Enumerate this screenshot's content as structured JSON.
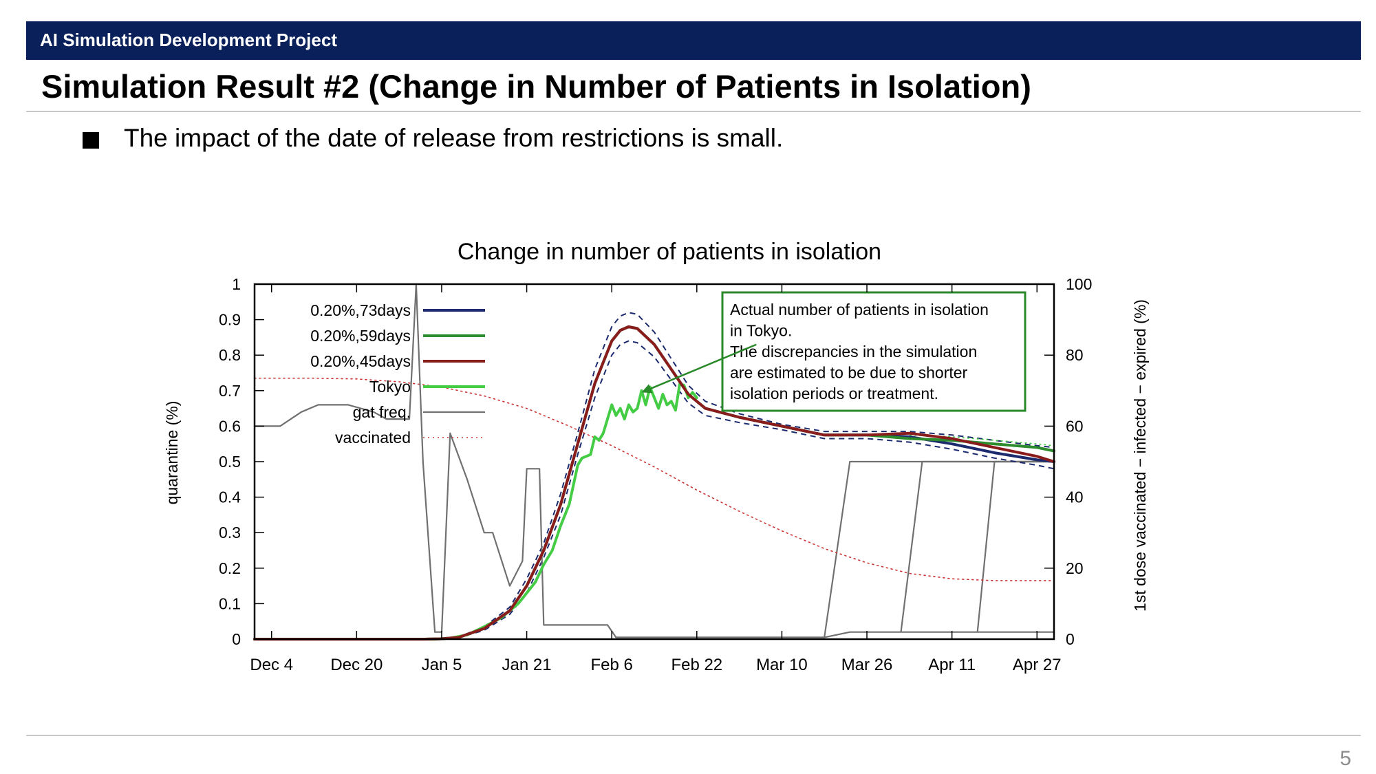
{
  "header": {
    "project": "AI Simulation Development Project"
  },
  "slide": {
    "title": "Simulation Result #2 (Change in Number of Patients in Isolation)",
    "bullet": "The impact of the date of release from restrictions is small.",
    "page_number": "5"
  },
  "annotation": {
    "lines": [
      "Actual number of patients in isolation",
      "in Tokyo.",
      "The discrepancies in the simulation",
      "are estimated to be due to shorter",
      "isolation periods or treatment."
    ],
    "border_color": "#2a8a2a"
  },
  "chart_data": {
    "type": "line",
    "title": "Change in number of patients in isolation",
    "ylabel": "quarantine (%)",
    "y2label": "1st dose vaccinated − infected − expired (%)",
    "xlim": [
      -0.2,
      9.2
    ],
    "ylim": [
      0,
      1
    ],
    "y2lim": [
      0,
      100
    ],
    "x_ticks": [
      0,
      1,
      2,
      3,
      4,
      5,
      6,
      7,
      8,
      9
    ],
    "x_tick_labels": [
      "Dec 4",
      "Dec 20",
      "Jan 5",
      "Jan 21",
      "Feb 6",
      "Feb 22",
      "Mar 10",
      "Mar 26",
      "Apr 11",
      "Apr 27"
    ],
    "y_ticks": [
      0,
      0.1,
      0.2,
      0.3,
      0.4,
      0.5,
      0.6,
      0.7,
      0.8,
      0.9,
      1
    ],
    "y_tick_labels": [
      "0",
      "0.1",
      "0.2",
      "0.3",
      "0.4",
      "0.5",
      "0.6",
      "0.7",
      "0.8",
      "0.9",
      "1"
    ],
    "y2_ticks": [
      0,
      20,
      40,
      60,
      80,
      100
    ],
    "y2_tick_labels": [
      "0",
      "20",
      "40",
      "60",
      "80",
      "100"
    ],
    "legend_position": "top-left",
    "series": [
      {
        "name": "0.20%,73days",
        "color": "#1c2a6e",
        "width": 4,
        "style": "solid",
        "axis": "y",
        "x": [
          -0.2,
          1.8,
          2.0,
          2.2,
          2.5,
          2.8,
          3.0,
          3.2,
          3.4,
          3.6,
          3.8,
          4.0,
          4.1,
          4.2,
          4.3,
          4.5,
          4.7,
          4.9,
          5.1,
          5.5,
          6.0,
          6.5,
          7.0,
          7.5,
          8.0,
          8.5,
          9.0,
          9.2
        ],
        "y": [
          0,
          0,
          0.001,
          0.005,
          0.03,
          0.08,
          0.15,
          0.25,
          0.38,
          0.55,
          0.72,
          0.84,
          0.87,
          0.88,
          0.875,
          0.83,
          0.76,
          0.69,
          0.65,
          0.625,
          0.6,
          0.575,
          0.575,
          0.57,
          0.55,
          0.525,
          0.505,
          0.5
        ]
      },
      {
        "name": "0.20%,59days",
        "color": "#2c8c2c",
        "width": 4,
        "style": "solid",
        "axis": "y",
        "x": [
          -0.2,
          1.8,
          2.0,
          2.2,
          2.5,
          2.8,
          3.0,
          3.2,
          3.4,
          3.6,
          3.8,
          4.0,
          4.1,
          4.2,
          4.3,
          4.5,
          4.7,
          4.9,
          5.1,
          5.5,
          6.0,
          6.5,
          7.0,
          7.5,
          8.0,
          8.5,
          9.0,
          9.2
        ],
        "y": [
          0,
          0,
          0.001,
          0.005,
          0.03,
          0.08,
          0.15,
          0.25,
          0.38,
          0.55,
          0.72,
          0.84,
          0.87,
          0.88,
          0.875,
          0.83,
          0.76,
          0.69,
          0.65,
          0.625,
          0.6,
          0.575,
          0.575,
          0.565,
          0.56,
          0.55,
          0.54,
          0.53
        ]
      },
      {
        "name": "0.20%,45days",
        "color": "#8a1c1c",
        "width": 4,
        "style": "solid",
        "axis": "y",
        "x": [
          -0.2,
          1.8,
          2.0,
          2.2,
          2.5,
          2.8,
          3.0,
          3.2,
          3.4,
          3.6,
          3.8,
          4.0,
          4.1,
          4.2,
          4.3,
          4.5,
          4.7,
          4.9,
          5.1,
          5.5,
          6.0,
          6.5,
          7.0,
          7.5,
          8.0,
          8.5,
          9.0,
          9.2
        ],
        "y": [
          0,
          0,
          0.001,
          0.005,
          0.03,
          0.08,
          0.15,
          0.25,
          0.38,
          0.55,
          0.72,
          0.84,
          0.87,
          0.88,
          0.875,
          0.83,
          0.76,
          0.69,
          0.65,
          0.625,
          0.6,
          0.575,
          0.575,
          0.58,
          0.565,
          0.54,
          0.515,
          0.5
        ]
      },
      {
        "name": "Tokyo",
        "color": "#44cc44",
        "width": 4,
        "style": "solid",
        "axis": "y",
        "x": [
          -0.2,
          1.9,
          2.1,
          2.3,
          2.5,
          2.7,
          2.9,
          3.0,
          3.1,
          3.2,
          3.3,
          3.4,
          3.5,
          3.6,
          3.65,
          3.75,
          3.8,
          3.85,
          3.9,
          4.0,
          4.05,
          4.1,
          4.15,
          4.2,
          4.25,
          4.3,
          4.35,
          4.4,
          4.45,
          4.5,
          4.55,
          4.6,
          4.65,
          4.7,
          4.75,
          4.8,
          4.85,
          4.9,
          4.95,
          5.0
        ],
        "y": [
          0,
          0,
          0.003,
          0.012,
          0.035,
          0.06,
          0.1,
          0.13,
          0.16,
          0.21,
          0.25,
          0.32,
          0.38,
          0.49,
          0.51,
          0.52,
          0.57,
          0.56,
          0.58,
          0.66,
          0.63,
          0.65,
          0.62,
          0.66,
          0.64,
          0.65,
          0.7,
          0.66,
          0.71,
          0.68,
          0.65,
          0.69,
          0.66,
          0.67,
          0.645,
          0.72,
          0.715,
          0.68,
          0.695,
          0.68
        ]
      },
      {
        "name": "gat freq.",
        "color": "#707070",
        "width": 2.2,
        "style": "solid",
        "axis": "y",
        "x": [
          -0.2,
          0.1,
          0.35,
          0.55,
          0.9,
          1.2,
          1.35,
          1.48,
          1.62,
          1.7,
          1.78,
          1.92,
          2.0,
          2.1,
          2.3,
          2.5,
          2.6,
          2.8,
          2.95,
          3.0,
          3.15,
          3.2,
          3.3,
          3.4,
          3.95,
          4.05,
          4.3,
          6.5,
          6.8,
          7.4,
          7.7,
          8.3,
          8.5,
          9.2
        ],
        "y": [
          0.6,
          0.6,
          0.64,
          0.66,
          0.66,
          0.64,
          0.62,
          0.62,
          0.62,
          1.0,
          0.5,
          0.02,
          0.02,
          0.58,
          0.45,
          0.3,
          0.3,
          0.15,
          0.22,
          0.48,
          0.48,
          0.04,
          0.04,
          0.04,
          0.04,
          0.005,
          0.005,
          0.005,
          0.02,
          0.02,
          0.02,
          0.02,
          0.02,
          0.02
        ]
      },
      {
        "name": "vaccinated",
        "color": "#cc3333",
        "width": 1.6,
        "style": "dotted",
        "axis": "y2",
        "x": [
          -0.2,
          0.5,
          1.0,
          1.5,
          2.0,
          2.5,
          3.0,
          3.5,
          4.0,
          4.5,
          5.0,
          5.5,
          6.0,
          6.5,
          7.0,
          7.5,
          8.0,
          8.5,
          9.0,
          9.2
        ],
        "y": [
          73.5,
          73.5,
          73.3,
          72.5,
          71,
          68.5,
          65,
          60,
          54.5,
          48.5,
          42,
          36,
          30.5,
          25.5,
          21.5,
          18.5,
          17,
          16.5,
          16.5,
          16.5
        ]
      }
    ],
    "extra_lines": [
      {
        "color": "#707070",
        "width": 2.2,
        "x": [
          6.5,
          6.8,
          9.2
        ],
        "y": [
          0.005,
          0.5,
          0.5
        ]
      },
      {
        "color": "#707070",
        "width": 2.2,
        "x": [
          7.4,
          7.65,
          9.2
        ],
        "y": [
          0.02,
          0.5,
          0.5
        ]
      },
      {
        "color": "#707070",
        "width": 2.2,
        "x": [
          8.3,
          8.5,
          9.2
        ],
        "y": [
          0.02,
          0.5,
          0.5
        ]
      },
      {
        "color": "#1c2a6e",
        "width": 2,
        "dash": "8,6",
        "x": [
          -0.2,
          1.8,
          2.0,
          2.2,
          2.5,
          2.8,
          3.0,
          3.2,
          3.4,
          3.6,
          3.8,
          4.0,
          4.1,
          4.2,
          4.3,
          4.5,
          4.7,
          4.9,
          5.1,
          5.5,
          6.0,
          6.5,
          7.0,
          7.5,
          8.0,
          8.5,
          9.0,
          9.2
        ],
        "y": [
          0,
          0,
          0.001,
          0.006,
          0.035,
          0.09,
          0.17,
          0.27,
          0.41,
          0.58,
          0.76,
          0.88,
          0.91,
          0.92,
          0.915,
          0.865,
          0.79,
          0.715,
          0.67,
          0.635,
          0.605,
          0.585,
          0.585,
          0.585,
          0.575,
          0.56,
          0.545,
          0.54
        ]
      },
      {
        "color": "#1c2a6e",
        "width": 2,
        "dash": "8,6",
        "x": [
          -0.2,
          1.8,
          2.0,
          2.2,
          2.5,
          2.8,
          3.0,
          3.2,
          3.4,
          3.6,
          3.8,
          4.0,
          4.1,
          4.2,
          4.3,
          4.5,
          4.7,
          4.9,
          5.1,
          5.5,
          6.0,
          6.5,
          7.0,
          7.5,
          8.0,
          8.5,
          9.0,
          9.2
        ],
        "y": [
          0,
          0,
          0.001,
          0.004,
          0.025,
          0.07,
          0.13,
          0.23,
          0.35,
          0.52,
          0.68,
          0.8,
          0.83,
          0.84,
          0.835,
          0.795,
          0.73,
          0.665,
          0.63,
          0.61,
          0.59,
          0.565,
          0.565,
          0.555,
          0.535,
          0.51,
          0.49,
          0.48
        ]
      },
      {
        "color": "#44cc44",
        "width": 1.6,
        "dash": "3,4",
        "x": [
          7.5,
          8.0,
          8.5,
          9.0,
          9.2
        ],
        "y": [
          0.575,
          0.57,
          0.56,
          0.55,
          0.545
        ]
      }
    ],
    "annotation_arrow": {
      "from": [
        5.7,
        0.83
      ],
      "to": [
        4.35,
        0.695
      ]
    }
  }
}
